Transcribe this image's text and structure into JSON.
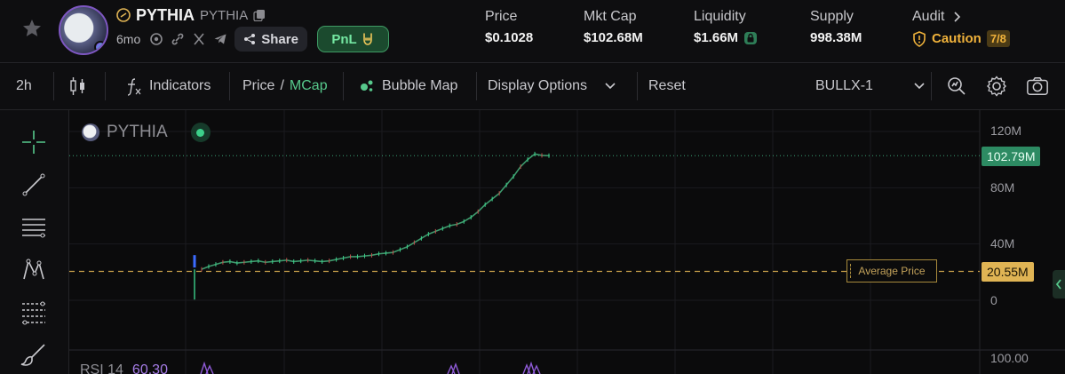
{
  "header": {
    "token_name": "PYTHIA",
    "token_symbol": "PYTHIA",
    "age": "6mo",
    "share_label": "Share",
    "pnl_label": "PnL",
    "stats": [
      {
        "label": "Price",
        "value": "$0.1028"
      },
      {
        "label": "Mkt Cap",
        "value": "$102.68M"
      },
      {
        "label": "Liquidity",
        "value": "$1.66M"
      },
      {
        "label": "Supply",
        "value": "998.38M"
      }
    ],
    "audit": {
      "label": "Audit",
      "status": "Caution",
      "score": "7/8"
    }
  },
  "toolbar": {
    "interval": "2h",
    "indicators_label": "Indicators",
    "price_label": "Price",
    "price_sep": "/",
    "mcap_label": "MCap",
    "bubble_map_label": "Bubble Map",
    "display_options_label": "Display Options",
    "reset_label": "Reset",
    "bullx_label": "BULLX-1"
  },
  "chart": {
    "legend_name": "PYTHIA",
    "y_axis_labels": [
      "120M",
      "80M",
      "40M",
      "0",
      "100.00"
    ],
    "current_tag": "102.79M",
    "avg_tag": "20.55M",
    "avg_label": "Average Price",
    "rsi_label": "RSI 14",
    "rsi_value": "60.30"
  },
  "chart_data": {
    "type": "line",
    "ylabel": "",
    "ylim": [
      0,
      120
    ],
    "unit": "M",
    "y_ticks": [
      0,
      40,
      80,
      120
    ],
    "current_value": 102.79,
    "average_price": 20.55,
    "series": [
      {
        "values": [
          0.5,
          22,
          24,
          25.5,
          27,
          27.5,
          26.5,
          27,
          27.5,
          28,
          27,
          27.5,
          28,
          28.5,
          27.5,
          28,
          28.5,
          28,
          27.5,
          28,
          29,
          30,
          31,
          31,
          31.5,
          32,
          33,
          33.5,
          34,
          36,
          38,
          41,
          44,
          47,
          49,
          51,
          53,
          54,
          56,
          59,
          63,
          68,
          72,
          76,
          82,
          88,
          95,
          100,
          104,
          103,
          102.79
        ]
      }
    ]
  },
  "colors": {
    "accent_green": "#57c98c",
    "caution": "#f0b23b",
    "avg_line": "#e0b454",
    "rsi": "#a57ce6"
  }
}
